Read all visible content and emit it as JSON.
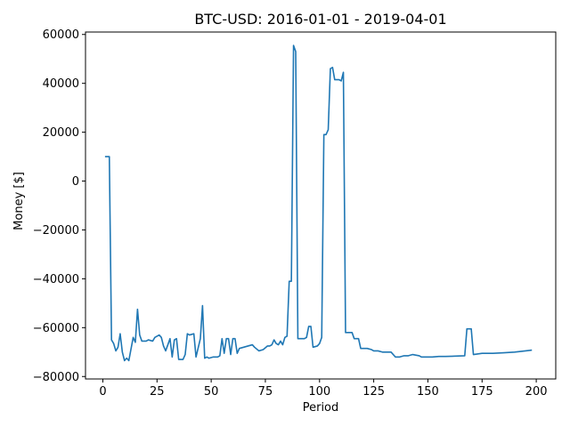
{
  "chart_data": {
    "type": "line",
    "title": "BTC-USD: 2016-01-01 - 2019-04-01",
    "xlabel": "Period",
    "ylabel": "Money [$]",
    "xlim": [
      -8,
      209
    ],
    "ylim": [
      -81000,
      61000
    ],
    "grid": false,
    "x_ticks": [
      0,
      25,
      50,
      75,
      100,
      125,
      150,
      175,
      200
    ],
    "x_tick_labels": [
      "0",
      "25",
      "50",
      "75",
      "100",
      "125",
      "150",
      "175",
      "200"
    ],
    "y_ticks": [
      -80000,
      -60000,
      -40000,
      -20000,
      0,
      20000,
      40000,
      60000
    ],
    "y_tick_labels": [
      "−80000",
      "−60000",
      "−40000",
      "−20000",
      "0",
      "20000",
      "40000",
      "60000"
    ],
    "series": [
      {
        "color": "#1f77b4",
        "points": [
          [
            1,
            10000
          ],
          [
            3,
            10000
          ],
          [
            4,
            -65000
          ],
          [
            5,
            -66500
          ],
          [
            6,
            -69500
          ],
          [
            7,
            -68000
          ],
          [
            8,
            -62500
          ],
          [
            9,
            -70000
          ],
          [
            10,
            -73500
          ],
          [
            11,
            -72500
          ],
          [
            12,
            -73500
          ],
          [
            14,
            -64000
          ],
          [
            15,
            -66000
          ],
          [
            16,
            -52500
          ],
          [
            17,
            -63000
          ],
          [
            18,
            -65500
          ],
          [
            20,
            -65500
          ],
          [
            21,
            -65000
          ],
          [
            23,
            -65500
          ],
          [
            24,
            -64000
          ],
          [
            26,
            -63000
          ],
          [
            27,
            -64000
          ],
          [
            28,
            -67500
          ],
          [
            29,
            -69500
          ],
          [
            30,
            -67000
          ],
          [
            31,
            -64500
          ],
          [
            32,
            -72000
          ],
          [
            33,
            -65000
          ],
          [
            34,
            -64500
          ],
          [
            35,
            -73000
          ],
          [
            37,
            -73000
          ],
          [
            38,
            -71000
          ],
          [
            39,
            -62500
          ],
          [
            40,
            -63000
          ],
          [
            42,
            -62500
          ],
          [
            43,
            -72000
          ],
          [
            45,
            -64500
          ],
          [
            46,
            -51000
          ],
          [
            47,
            -72500
          ],
          [
            48,
            -72000
          ],
          [
            49,
            -72500
          ],
          [
            51,
            -72000
          ],
          [
            53,
            -72000
          ],
          [
            54,
            -71500
          ],
          [
            55,
            -64500
          ],
          [
            56,
            -70500
          ],
          [
            57,
            -64500
          ],
          [
            58,
            -64500
          ],
          [
            59,
            -71000
          ],
          [
            60,
            -64500
          ],
          [
            61,
            -64500
          ],
          [
            62,
            -70500
          ],
          [
            63,
            -68500
          ],
          [
            65,
            -68000
          ],
          [
            67,
            -67500
          ],
          [
            69,
            -67000
          ],
          [
            70,
            -68000
          ],
          [
            72,
            -69500
          ],
          [
            74,
            -69000
          ],
          [
            76,
            -67500
          ],
          [
            77,
            -67500
          ],
          [
            78,
            -67000
          ],
          [
            79,
            -65000
          ],
          [
            80,
            -66500
          ],
          [
            81,
            -67000
          ],
          [
            82,
            -65500
          ],
          [
            83,
            -67000
          ],
          [
            84,
            -64000
          ],
          [
            85,
            -63500
          ],
          [
            86,
            -41000
          ],
          [
            87,
            -41000
          ],
          [
            88,
            55500
          ],
          [
            89,
            53000
          ],
          [
            90,
            -64500
          ],
          [
            93,
            -64500
          ],
          [
            94,
            -64000
          ],
          [
            95,
            -59500
          ],
          [
            96,
            -59500
          ],
          [
            97,
            -68000
          ],
          [
            99,
            -67500
          ],
          [
            100,
            -66500
          ],
          [
            101,
            -64000
          ],
          [
            102,
            19000
          ],
          [
            103,
            19000
          ],
          [
            104,
            21000
          ],
          [
            105,
            46000
          ],
          [
            106,
            46500
          ],
          [
            107,
            41500
          ],
          [
            109,
            41500
          ],
          [
            110,
            41000
          ],
          [
            111,
            44500
          ],
          [
            112,
            -62000
          ],
          [
            115,
            -62000
          ],
          [
            116,
            -64500
          ],
          [
            118,
            -64500
          ],
          [
            119,
            -68500
          ],
          [
            122,
            -68500
          ],
          [
            124,
            -69000
          ],
          [
            125,
            -69500
          ],
          [
            127,
            -69500
          ],
          [
            129,
            -70000
          ],
          [
            133,
            -70000
          ],
          [
            135,
            -72000
          ],
          [
            137,
            -72000
          ],
          [
            139,
            -71500
          ],
          [
            141,
            -71500
          ],
          [
            143,
            -71000
          ],
          [
            146,
            -71500
          ],
          [
            147,
            -72000
          ],
          [
            152,
            -72000
          ],
          [
            155,
            -71800
          ],
          [
            158,
            -71800
          ],
          [
            164,
            -71600
          ],
          [
            167,
            -71500
          ],
          [
            168,
            -60500
          ],
          [
            170,
            -60500
          ],
          [
            171,
            -71000
          ],
          [
            175,
            -70500
          ],
          [
            180,
            -70500
          ],
          [
            185,
            -70300
          ],
          [
            190,
            -70000
          ],
          [
            195,
            -69500
          ],
          [
            198,
            -69200
          ]
        ]
      }
    ]
  }
}
